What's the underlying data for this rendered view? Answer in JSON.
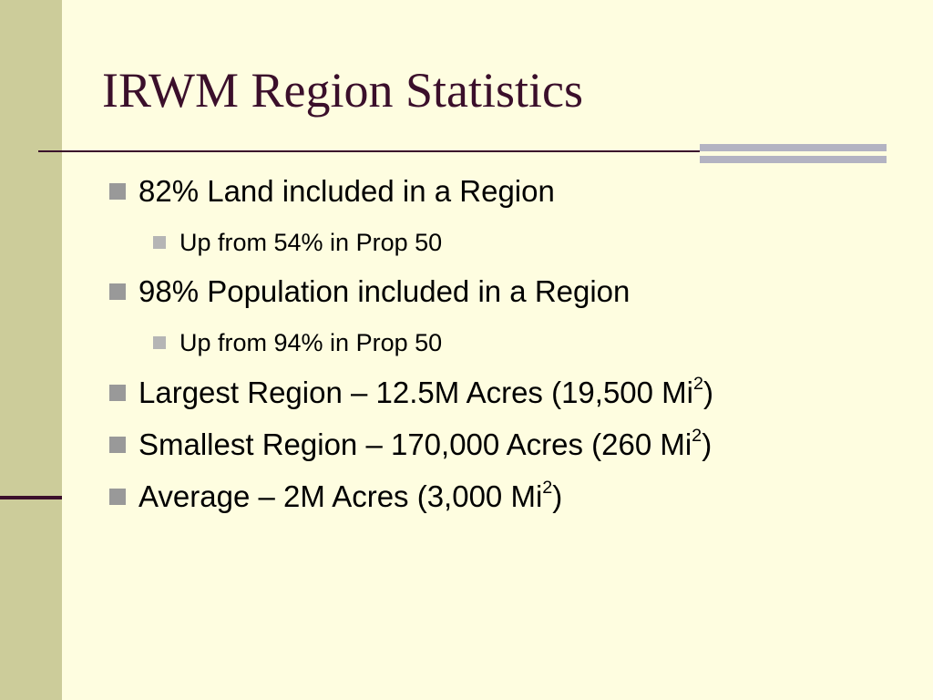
{
  "slide": {
    "title": "IRWM Region Statistics",
    "colors": {
      "background": "#fefde0",
      "left_band": "#cccc9a",
      "accent": "#3b0f2b",
      "bar": "#b3b3c2",
      "bullet_marker": "#999999"
    },
    "bullets": [
      {
        "text": "82% Land included in a Region"
      },
      {
        "text": "Up from 54% in Prop 50"
      },
      {
        "text": "98% Population included in a Region"
      },
      {
        "text": "Up from 94% in Prop 50"
      },
      {
        "text": "Largest Region – 12.5M Acres (19,500 Mi",
        "sup": "2",
        "suffix": ")"
      },
      {
        "text": "Smallest Region – 170,000 Acres (260 Mi",
        "sup": "2",
        "suffix": ")"
      },
      {
        "text": "Average – 2M Acres (3,000 Mi",
        "sup": "2",
        "suffix": ")"
      }
    ]
  }
}
